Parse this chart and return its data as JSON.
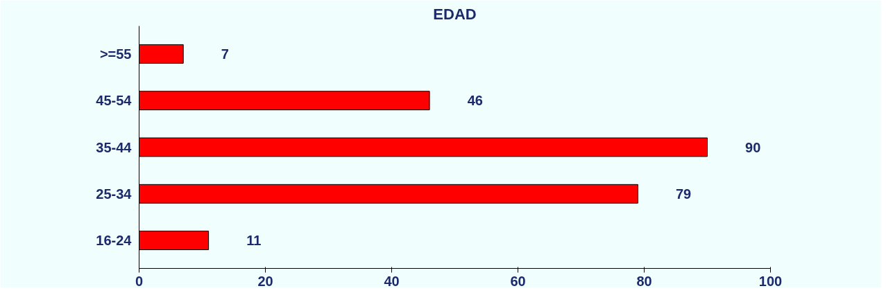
{
  "chart_data": {
    "type": "bar",
    "orientation": "horizontal",
    "title": "EDAD",
    "categories": [
      ">=55",
      "45-54",
      "35-44",
      "25-34",
      "16-24"
    ],
    "values": [
      7,
      46,
      90,
      79,
      11
    ],
    "color": "#ff0000",
    "xlim": [
      0,
      100
    ],
    "xticks": [
      0,
      20,
      40,
      60,
      80,
      100
    ],
    "data_labels": true,
    "grid": false
  }
}
